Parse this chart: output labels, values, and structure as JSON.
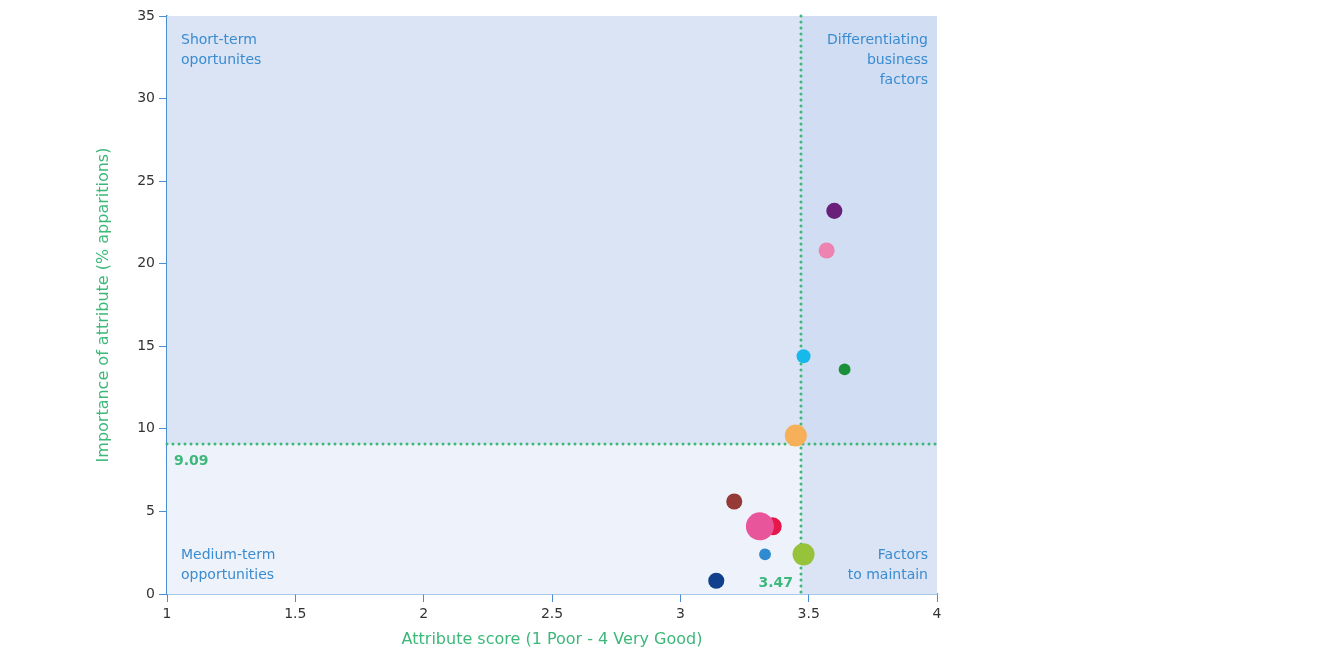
{
  "chart_data": {
    "type": "bubble",
    "xlabel": "Attribute score (1 Poor - 4 Very Good)",
    "ylabel": "Importance of attribute (% apparitions)",
    "xlim": [
      1,
      4
    ],
    "xticks": [
      1,
      1.5,
      2,
      2.5,
      3,
      3.5,
      4
    ],
    "ylim": [
      0,
      35
    ],
    "yticks": [
      0,
      5,
      10,
      15,
      20,
      25,
      30,
      35
    ],
    "grid": false,
    "legend": false,
    "series": [
      {
        "color": "#6a1f7a",
        "x": [
          3.6
        ],
        "values": [
          23.2
        ],
        "sizes": [
          0.33
        ]
      },
      {
        "color": "#ee82b0",
        "x": [
          3.57
        ],
        "values": [
          20.8
        ],
        "sizes": [
          0.33
        ]
      },
      {
        "color": "#17b8ea",
        "x": [
          3.48
        ],
        "values": [
          14.4
        ],
        "sizes": [
          0.25
        ]
      },
      {
        "color": "#1a9038",
        "x": [
          3.64
        ],
        "values": [
          13.6
        ],
        "sizes": [
          0.18
        ]
      },
      {
        "color": "#f7b05a",
        "x": [
          3.45
        ],
        "values": [
          9.6
        ],
        "sizes": [
          0.62
        ]
      },
      {
        "color": "#953a36",
        "x": [
          3.21
        ],
        "values": [
          5.6
        ],
        "sizes": [
          0.33
        ]
      },
      {
        "color": "#e8559a",
        "x": [
          3.31
        ],
        "values": [
          4.1
        ],
        "sizes": [
          1
        ]
      },
      {
        "color": "#e6174a",
        "x": [
          3.36
        ],
        "values": [
          4.1
        ],
        "sizes": [
          0.41
        ]
      },
      {
        "color": "#2f8ad0",
        "x": [
          3.33
        ],
        "values": [
          2.4
        ],
        "sizes": [
          0.18
        ]
      },
      {
        "color": "#97c33a",
        "x": [
          3.48
        ],
        "values": [
          2.4
        ],
        "sizes": [
          0.62
        ]
      },
      {
        "color": "#123f8c",
        "x": [
          3.14
        ],
        "values": [
          0.8
        ],
        "sizes": [
          0.33
        ]
      }
    ],
    "ref_lines": [
      {
        "axis": "x",
        "value": 3.47,
        "label": "3.47",
        "color": "#3db87a",
        "line_style": "dotted"
      },
      {
        "axis": "y",
        "value": 9.09,
        "label": "9.09",
        "color": "#3db87a",
        "line_style": "dotted"
      }
    ],
    "bands": [
      {
        "axis": "x",
        "from": 3.47,
        "to": 4,
        "color": "#c8d5ef"
      },
      {
        "axis": "y",
        "from": 9.09,
        "to": 35,
        "color": "#c8d5ef"
      }
    ],
    "annotations": [
      "Short-term\noportunites",
      "Differentiating\nbusiness\nfactors",
      "Medium-term\nopportunities",
      "Factors\nto maintain"
    ]
  }
}
